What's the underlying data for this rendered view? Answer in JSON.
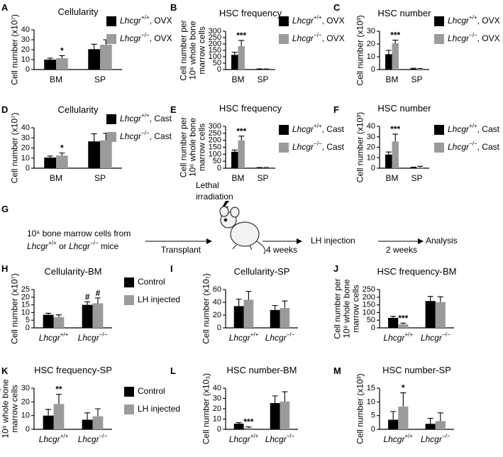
{
  "chart_data": [
    {
      "type": "bar",
      "panel": "A",
      "title": "Cellularity",
      "ylabel": [
        "Cell number (x10⁷)"
      ],
      "categories": [
        "BM",
        "SP"
      ],
      "series": [
        {
          "name": "Lhcgr+/+, OVX",
          "color": "#000000",
          "values": [
            10,
            20.5
          ],
          "errors": [
            1.5,
            5
          ]
        },
        {
          "name": "Lhcgr−/−, OVX",
          "color": "#9b9b9b",
          "values": [
            11.5,
            25
          ],
          "errors": [
            2.5,
            5
          ]
        }
      ],
      "ylim": [
        0,
        40
      ],
      "yticks": [
        0,
        10,
        20,
        30,
        40
      ],
      "legend": "right",
      "annotations": [
        {
          "text": "*",
          "series": 1,
          "category": 0
        }
      ]
    },
    {
      "type": "bar",
      "panel": "B",
      "title": "HSC frequency",
      "ylabel": [
        "Cell number per",
        "10⁶ whole bone",
        "marrow cells"
      ],
      "categories": [
        "BM",
        "SP"
      ],
      "series": [
        {
          "name": "Lhcgr+/+, OVX",
          "color": "#000000",
          "values": [
            115,
            3
          ],
          "errors": [
            20,
            2
          ]
        },
        {
          "name": "Lhcgr−/−, OVX",
          "color": "#9b9b9b",
          "values": [
            183,
            3
          ],
          "errors": [
            45,
            2
          ]
        }
      ],
      "ylim": [
        0,
        300
      ],
      "yticks": [
        0,
        50,
        100,
        150,
        200,
        250,
        300
      ],
      "legend": "right",
      "annotations": [
        {
          "text": "***",
          "series": 1,
          "category": 0
        }
      ]
    },
    {
      "type": "bar",
      "panel": "C",
      "title": "HSC number",
      "ylabel": [
        "Cell number (x10³)"
      ],
      "categories": [
        "BM",
        "SP"
      ],
      "series": [
        {
          "name": "Lhcgr+/+, OVX",
          "color": "#000000",
          "values": [
            12,
            0.6
          ],
          "errors": [
            3,
            0.4
          ]
        },
        {
          "name": "Lhcgr−/−, OVX",
          "color": "#9b9b9b",
          "values": [
            20.5,
            0.4
          ],
          "errors": [
            2.5,
            0.5
          ]
        }
      ],
      "ylim": [
        0,
        30
      ],
      "yticks": [
        0,
        10,
        20,
        30
      ],
      "legend": "right",
      "annotations": [
        {
          "text": "***",
          "series": 1,
          "category": 0
        }
      ]
    },
    {
      "type": "bar",
      "panel": "D",
      "title": "Cellularity",
      "ylabel": [
        "Cell number (x10⁷)"
      ],
      "categories": [
        "BM",
        "SP"
      ],
      "series": [
        {
          "name": "Lhcgr+/+, Cast",
          "color": "#000000",
          "values": [
            10.5,
            26.5
          ],
          "errors": [
            1.5,
            7.5
          ]
        },
        {
          "name": "Lhcgr−/−, Cast",
          "color": "#9b9b9b",
          "values": [
            12.5,
            27.5
          ],
          "errors": [
            2.5,
            7
          ]
        }
      ],
      "ylim": [
        0,
        40
      ],
      "yticks": [
        0,
        10,
        20,
        30,
        40
      ],
      "legend": "right",
      "annotations": [
        {
          "text": "*",
          "series": 1,
          "category": 0
        }
      ]
    },
    {
      "type": "bar",
      "panel": "E",
      "title": "HSC frequency",
      "ylabel": [
        "Cell number per",
        "10⁶ whole bone",
        "marrow cells"
      ],
      "categories": [
        "BM",
        "SP"
      ],
      "series": [
        {
          "name": "Lhcgr+/+, Cast",
          "color": "#000000",
          "values": [
            118,
            3
          ],
          "errors": [
            12,
            2
          ]
        },
        {
          "name": "Lhcgr−/−, Cast",
          "color": "#9b9b9b",
          "values": [
            200,
            3
          ],
          "errors": [
            30,
            2
          ]
        }
      ],
      "ylim": [
        0,
        300
      ],
      "yticks": [
        0,
        50,
        100,
        150,
        200,
        250,
        300
      ],
      "legend": "right",
      "annotations": [
        {
          "text": "***",
          "series": 1,
          "category": 0
        }
      ]
    },
    {
      "type": "bar",
      "panel": "F",
      "title": "HSC number",
      "ylabel": [
        "Cell number (x10³)"
      ],
      "categories": [
        "BM",
        "SP"
      ],
      "series": [
        {
          "name": "Lhcgr+/+, Cast",
          "color": "#000000",
          "values": [
            13,
            0.7
          ],
          "errors": [
            2.5,
            0.3
          ]
        },
        {
          "name": "Lhcgr−/−, Cast",
          "color": "#9b9b9b",
          "values": [
            25.5,
            0.8
          ],
          "errors": [
            7,
            1
          ]
        }
      ],
      "ylim": [
        0,
        40
      ],
      "yticks": [
        0,
        10,
        20,
        30,
        40
      ],
      "legend": "right",
      "annotations": [
        {
          "text": "***",
          "series": 1,
          "category": 0
        }
      ]
    },
    {
      "type": "bar",
      "panel": "H",
      "title": "Cellularity-BM",
      "ylabel": [
        "Cell number (x10⁷)"
      ],
      "categories": [
        "Lhcgr+/+",
        "Lhcgr−/−"
      ],
      "series": [
        {
          "name": "Control",
          "color": "#000000",
          "values": [
            8.5,
            15
          ],
          "errors": [
            1,
            2
          ]
        },
        {
          "name": "LH injected",
          "color": "#9b9b9b",
          "values": [
            7,
            16
          ],
          "errors": [
            1.5,
            3.5
          ]
        }
      ],
      "ylim": [
        0,
        25
      ],
      "yticks": [
        0,
        5,
        10,
        15,
        20,
        25
      ],
      "legend": "right",
      "annotations": [
        {
          "text": "#",
          "series": 0,
          "category": 1
        },
        {
          "text": "#",
          "series": 1,
          "category": 1
        }
      ]
    },
    {
      "type": "bar",
      "panel": "I",
      "title": "Cellularity-SP",
      "ylabel": [
        "Cell number (x10₇)"
      ],
      "categories": [
        "Lhcgr+/+",
        "Lhcgr−/−"
      ],
      "series": [
        {
          "color": "#000000",
          "values": [
            34,
            28
          ],
          "errors": [
            11,
            7
          ]
        },
        {
          "color": "#9b9b9b",
          "values": [
            44,
            31
          ],
          "errors": [
            13,
            11
          ]
        }
      ],
      "ylim": [
        0,
        60
      ],
      "yticks": [
        0,
        20,
        40,
        60
      ],
      "annotations": []
    },
    {
      "type": "bar",
      "panel": "J",
      "title": "HSC frequency-BM",
      "ylabel": [
        "Cell number per",
        "10⁶ whole bone",
        "marrow cells"
      ],
      "categories": [
        "Lhcgr+/+",
        "Lhcgr−/−"
      ],
      "series": [
        {
          "color": "#000000",
          "values": [
            65,
            175
          ],
          "errors": [
            10,
            30
          ]
        },
        {
          "color": "#9b9b9b",
          "values": [
            23,
            168
          ],
          "errors": [
            8,
            35
          ]
        }
      ],
      "ylim": [
        0,
        250
      ],
      "yticks": [
        0,
        50,
        100,
        150,
        200,
        250
      ],
      "annotations": [
        {
          "text": "***",
          "series": 1,
          "category": 0
        }
      ]
    },
    {
      "type": "bar",
      "panel": "K",
      "title": "HSC frequency-SP",
      "ylabel": [
        "Cell number per",
        "10⁶ whole bone",
        "marrow cells"
      ],
      "categories": [
        "Lhcgr+/+",
        "Lhcgr−/−"
      ],
      "series": [
        {
          "name": "Control",
          "color": "#000000",
          "values": [
            10,
            7
          ],
          "errors": [
            4.5,
            5
          ]
        },
        {
          "name": "LH injected",
          "color": "#9b9b9b",
          "values": [
            18.5,
            9.5
          ],
          "errors": [
            7,
            5.5
          ]
        }
      ],
      "ylim": [
        0,
        30
      ],
      "yticks": [
        0,
        10,
        20,
        30
      ],
      "legend": "right",
      "annotations": [
        {
          "text": "**",
          "series": 1,
          "category": 0
        }
      ]
    },
    {
      "type": "bar",
      "panel": "L",
      "title": "HSC number-BM",
      "ylabel": [
        "Cell number (x10₃)"
      ],
      "categories": [
        "Lhcgr+/+",
        "Lhcgr−/−"
      ],
      "series": [
        {
          "color": "#000000",
          "values": [
            5.5,
            25.5
          ],
          "errors": [
            1,
            7
          ]
        },
        {
          "color": "#9b9b9b",
          "values": [
            1.5,
            27
          ],
          "errors": [
            1,
            9.5
          ]
        }
      ],
      "ylim": [
        0,
        40
      ],
      "yticks": [
        0,
        10,
        20,
        30,
        40
      ],
      "annotations": [
        {
          "text": "***",
          "series": 1,
          "category": 0
        }
      ]
    },
    {
      "type": "bar",
      "panel": "M",
      "title": "HSC number-SP",
      "ylabel": [
        "Cell number (x10³)"
      ],
      "categories": [
        "Lhcgr+/+",
        "Lhcgr−/−"
      ],
      "series": [
        {
          "color": "#000000",
          "values": [
            3.5,
            2
          ],
          "errors": [
            3,
            2
          ]
        },
        {
          "color": "#9b9b9b",
          "values": [
            8.3,
            3
          ],
          "errors": [
            5,
            3
          ]
        }
      ],
      "ylim": [
        0,
        15
      ],
      "yticks": [
        0,
        5,
        10,
        15
      ],
      "annotations": [
        {
          "text": "*",
          "series": 1,
          "category": 0
        }
      ]
    }
  ],
  "diagram": {
    "panel": "G",
    "source": [
      "10⁶ bone marrow  cells from",
      "Lhcgr+/+ or Lhcgr−/− mice"
    ],
    "treatment": [
      "Lethal",
      "irradiation"
    ],
    "steps": [
      "Transplant",
      "4 weeks",
      "LH injection",
      "2 weeks",
      "Analysis"
    ]
  }
}
